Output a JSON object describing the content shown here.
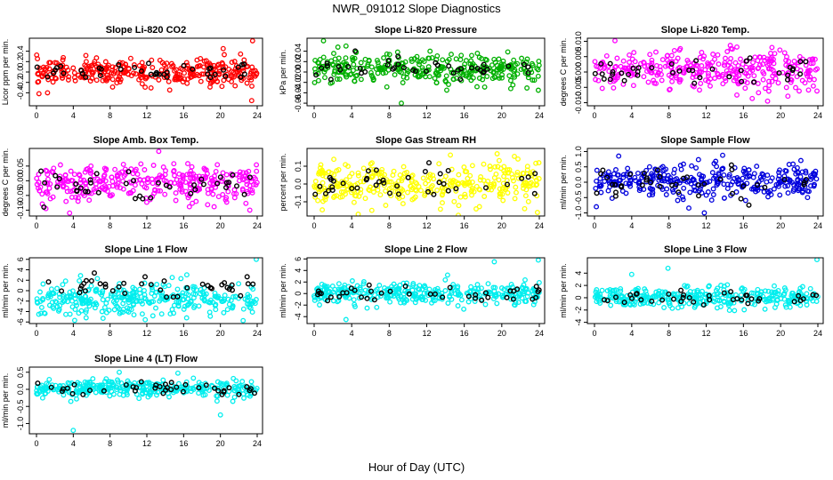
{
  "figure": {
    "title": "NWR_091012  Slope Diagnostics",
    "xlabel": "Hour of Day (UTC)"
  },
  "chart_data": [
    {
      "type": "scatter",
      "title": "Slope Li-820 CO2",
      "ylabel": "Licor ppm per min.",
      "xlim": [
        0,
        24
      ],
      "xticks": [
        0,
        4,
        8,
        12,
        16,
        20,
        24
      ],
      "ylim": [
        -0.65,
        0.65
      ],
      "yticks": [
        -0.4,
        -0.2,
        0.0,
        0.2,
        0.4
      ],
      "ytick_labels": [
        "-0.4",
        "-0.2",
        "0.0",
        "0.2",
        "0.4"
      ],
      "color": "#ff0000",
      "spread": 0.12,
      "center": 0.0,
      "outliers": [
        [
          23.5,
          0.6
        ],
        [
          20.3,
          0.45
        ],
        [
          23.4,
          -0.55
        ],
        [
          1.2,
          -0.4
        ]
      ]
    },
    {
      "type": "scatter",
      "title": "Slope Li-820 Pressure",
      "ylabel": "kPa per min.",
      "xlim": [
        0,
        24
      ],
      "xticks": [
        0,
        4,
        8,
        12,
        16,
        20,
        24
      ],
      "ylim": [
        -0.065,
        0.065
      ],
      "yticks": [
        -0.06,
        -0.04,
        -0.02,
        0.0,
        0.02,
        0.04
      ],
      "ytick_labels": [
        "-0.06",
        "-0.04",
        "-0.02",
        "0.00",
        "0.02",
        "0.04"
      ],
      "color": "#00b000",
      "spread": 0.014,
      "center": 0.005,
      "outliers": [
        [
          1.0,
          0.06
        ],
        [
          9.3,
          -0.06
        ],
        [
          23.9,
          -0.035
        ],
        [
          3.4,
          0.05
        ]
      ]
    },
    {
      "type": "scatter",
      "title": "Slope Li-820 Temp.",
      "ylabel": "degrees C per min.",
      "xlim": [
        0,
        24
      ],
      "xticks": [
        0,
        4,
        8,
        12,
        16,
        20,
        24
      ],
      "ylim": [
        -0.011,
        0.011
      ],
      "yticks": [
        -0.01,
        -0.005,
        0.0,
        0.005,
        0.01
      ],
      "ytick_labels": [
        "-0.010",
        "-0.005",
        "0.000",
        "0.005",
        "0.010"
      ],
      "color": "#ff00ff",
      "spread": 0.0032,
      "center": 0.0005,
      "outliers": [
        [
          2.2,
          0.0102
        ],
        [
          18.6,
          -0.0095
        ],
        [
          15.3,
          -0.0075
        ]
      ]
    },
    {
      "type": "scatter",
      "title": "Slope Amb. Box Temp.",
      "ylabel": "degrees C per min.",
      "xlim": [
        0,
        24
      ],
      "xticks": [
        0,
        4,
        8,
        12,
        16,
        20,
        24
      ],
      "ylim": [
        -0.12,
        0.11
      ],
      "yticks": [
        -0.1,
        -0.05,
        0.0,
        0.05
      ],
      "ytick_labels": [
        "-0.10",
        "-0.05",
        "0.00",
        "0.05"
      ],
      "color": "#ff00ff",
      "spread": 0.03,
      "center": -0.01,
      "outliers": [
        [
          13.3,
          0.1
        ],
        [
          3.6,
          -0.11
        ],
        [
          23.2,
          -0.1
        ]
      ]
    },
    {
      "type": "scatter",
      "title": "Slope Gas Stream RH",
      "ylabel": "percent per min.",
      "xlim": [
        0,
        24
      ],
      "xticks": [
        0,
        4,
        8,
        12,
        16,
        20,
        24
      ],
      "ylim": [
        -0.18,
        0.2
      ],
      "yticks": [
        -0.1,
        0.0,
        0.1
      ],
      "ytick_labels": [
        "-0.1",
        "0.0",
        "0.1"
      ],
      "color": "#ffff00",
      "spread": 0.06,
      "center": 0.0,
      "outliers": [
        [
          23.8,
          -0.16
        ],
        [
          19.5,
          0.17
        ],
        [
          4.7,
          -0.17
        ]
      ]
    },
    {
      "type": "scatter",
      "title": "Slope Sample Flow",
      "ylabel": "ml/min per min.",
      "xlim": [
        0,
        24
      ],
      "xticks": [
        0,
        4,
        8,
        12,
        16,
        20,
        24
      ],
      "ylim": [
        -1.1,
        1.1
      ],
      "yticks": [
        -1.0,
        -0.5,
        0.0,
        0.5,
        1.0
      ],
      "ytick_labels": [
        "-1.0",
        "-0.5",
        "0.0",
        "0.5",
        "1.0"
      ],
      "color": "#0000dd",
      "spread": 0.28,
      "center": 0.0,
      "outliers": [
        [
          11.8,
          -1.0
        ],
        [
          2.6,
          0.85
        ],
        [
          0.2,
          -0.8
        ]
      ]
    },
    {
      "type": "scatter",
      "title": "Slope Line 1 Flow",
      "ylabel": "ml/min per min.",
      "xlim": [
        0,
        24
      ],
      "xticks": [
        0,
        4,
        8,
        12,
        16,
        20,
        24
      ],
      "ylim": [
        -6.3,
        6.3
      ],
      "yticks": [
        -6,
        -4,
        -2,
        0,
        2,
        4,
        6
      ],
      "ytick_labels": [
        "-6",
        "-4",
        "-2",
        "0",
        "2",
        "4",
        "6"
      ],
      "color": "#00eeee",
      "spread": 1.6,
      "center": -1.5,
      "outliers": [
        [
          23.9,
          6.0
        ],
        [
          18.9,
          -4.9
        ],
        [
          5.4,
          -5.2
        ]
      ]
    },
    {
      "type": "scatter",
      "title": "Slope Line 2 Flow",
      "ylabel": "ml/min per min.",
      "xlim": [
        0,
        24
      ],
      "xticks": [
        0,
        4,
        8,
        12,
        16,
        20,
        24
      ],
      "ylim": [
        -5.2,
        6.2
      ],
      "yticks": [
        -4,
        -2,
        0,
        2,
        4,
        6
      ],
      "ytick_labels": [
        "-4",
        "-2",
        "0",
        "2",
        "4",
        "6"
      ],
      "color": "#00eeee",
      "spread": 0.9,
      "center": 0.0,
      "outliers": [
        [
          23.9,
          5.8
        ],
        [
          3.4,
          -4.5
        ],
        [
          19.2,
          5.5
        ]
      ]
    },
    {
      "type": "scatter",
      "title": "Slope Line 3 Flow",
      "ylabel": "ml/min per min.",
      "xlim": [
        0,
        24
      ],
      "xticks": [
        0,
        4,
        8,
        12,
        16,
        20,
        24
      ],
      "ylim": [
        -4.2,
        6.5
      ],
      "yticks": [
        -4,
        -2,
        0,
        2,
        4
      ],
      "ytick_labels": [
        "-4",
        "-2",
        "0",
        "2",
        "4"
      ],
      "color": "#00eeee",
      "spread": 0.85,
      "center": 0.0,
      "outliers": [
        [
          23.9,
          6.2
        ],
        [
          7.9,
          4.8
        ],
        [
          4.0,
          3.8
        ]
      ]
    },
    {
      "type": "scatter",
      "title": "Slope Line 4 (LT) Flow",
      "ylabel": "ml/min per min.",
      "xlim": [
        0,
        24
      ],
      "xticks": [
        0,
        4,
        8,
        12,
        16,
        20,
        24
      ],
      "ylim": [
        -1.3,
        0.65
      ],
      "yticks": [
        -1.0,
        -0.5,
        0.0,
        0.5
      ],
      "ytick_labels": [
        "-1.0",
        "-0.5",
        "0.0",
        "0.5"
      ],
      "color": "#00eeee",
      "spread": 0.12,
      "center": 0.02,
      "outliers": [
        [
          4.0,
          -1.2
        ],
        [
          20.0,
          -0.75
        ],
        [
          9.0,
          0.5
        ]
      ]
    }
  ]
}
